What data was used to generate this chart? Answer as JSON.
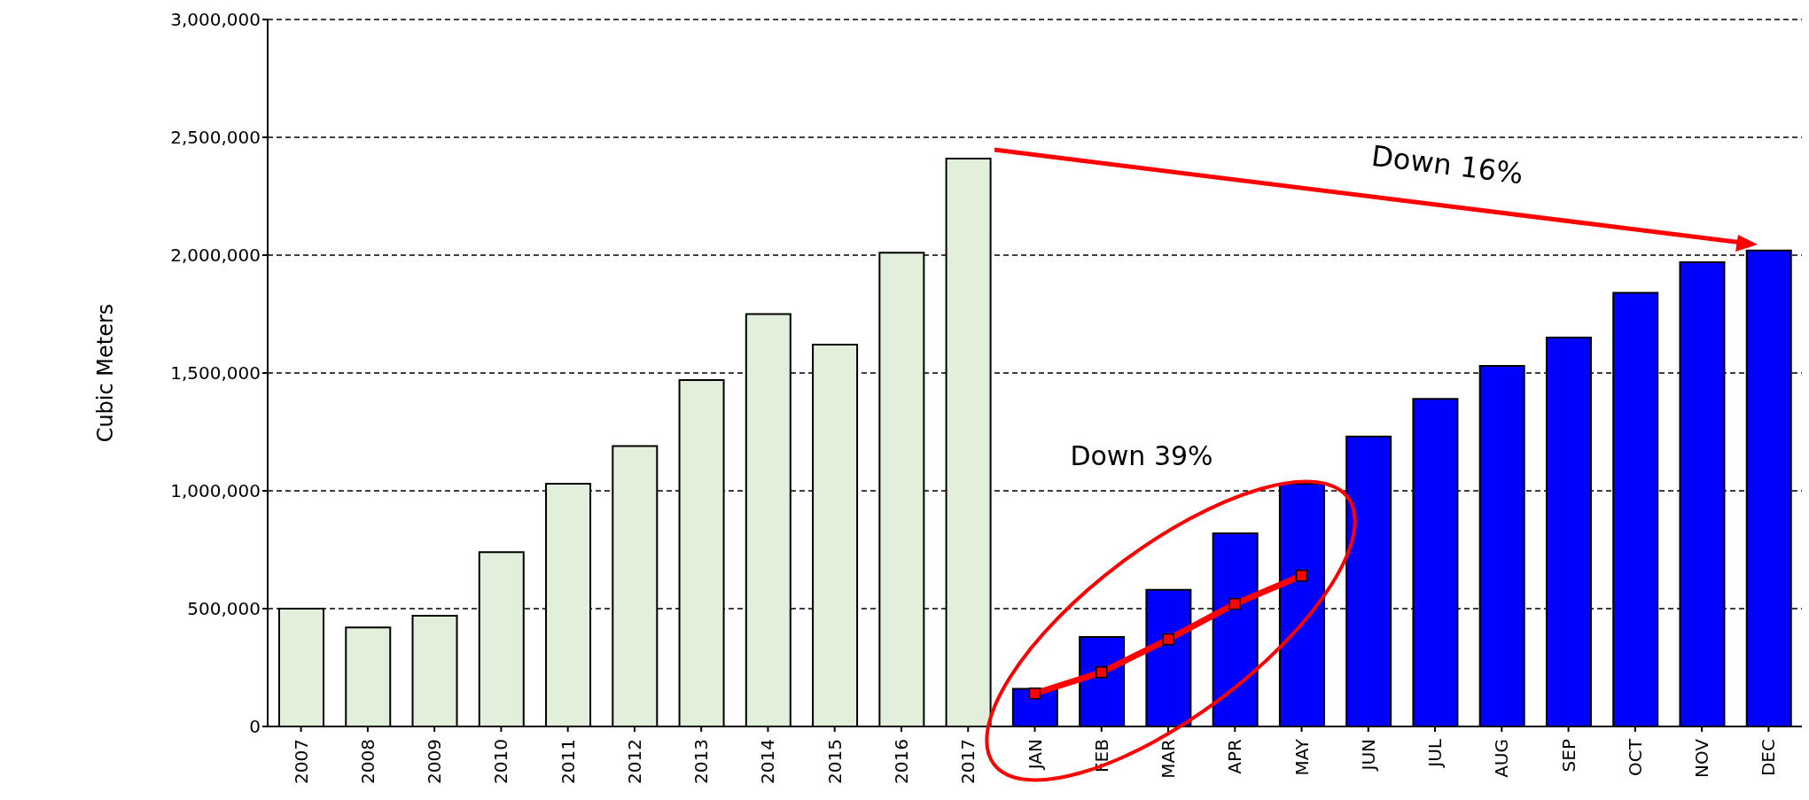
{
  "chart_data": {
    "type": "bar",
    "ylabel": "Cubic Meters",
    "categories": [
      "2007",
      "2008",
      "2009",
      "2010",
      "2011",
      "2012",
      "2013",
      "2014",
      "2015",
      "2016",
      "2017",
      "JAN",
      "FEB",
      "MAR",
      "APR",
      "MAY",
      "JUN",
      "JUL",
      "AUG",
      "SEP",
      "OCT",
      "NOV",
      "DEC"
    ],
    "series": [
      {
        "values": [
          500000,
          420000,
          470000,
          740000,
          1030000,
          1190000,
          1470000,
          1750000,
          1620000,
          2010000,
          2410000,
          160000,
          380000,
          580000,
          820000,
          1030000,
          1230000,
          1390000,
          1530000,
          1650000,
          1840000,
          1970000,
          2020000
        ],
        "colors": [
          "#e2efda",
          "#e2efda",
          "#e2efda",
          "#e2efda",
          "#e2efda",
          "#e2efda",
          "#e2efda",
          "#e2efda",
          "#e2efda",
          "#e2efda",
          "#e2efda",
          "#0000ff",
          "#0000ff",
          "#0000ff",
          "#0000ff",
          "#0000ff",
          "#0000ff",
          "#0000ff",
          "#0000ff",
          "#0000ff",
          "#0000ff",
          "#0000ff",
          "#0000ff"
        ]
      },
      {
        "type": "line",
        "color": "#ff0000",
        "marker": "square",
        "values": [
          null,
          null,
          null,
          null,
          null,
          null,
          null,
          null,
          null,
          null,
          null,
          140000,
          230000,
          370000,
          520000,
          640000,
          null,
          null,
          null,
          null,
          null,
          null,
          null
        ]
      }
    ],
    "ylim": [
      0,
      3000000
    ],
    "yticks": [
      {
        "value": 0,
        "label": "0"
      },
      {
        "value": 500000,
        "label": "500,000"
      },
      {
        "value": 1000000,
        "label": "1,000,000"
      },
      {
        "value": 1500000,
        "label": "1,500,000"
      },
      {
        "value": 2000000,
        "label": "2,000,000"
      },
      {
        "value": 2500000,
        "label": "2,500,000"
      },
      {
        "value": 3000000,
        "label": "3,000,000"
      }
    ],
    "grid": "y",
    "legend": false,
    "annotations": [
      "Down 16%",
      "Down 39%"
    ]
  }
}
